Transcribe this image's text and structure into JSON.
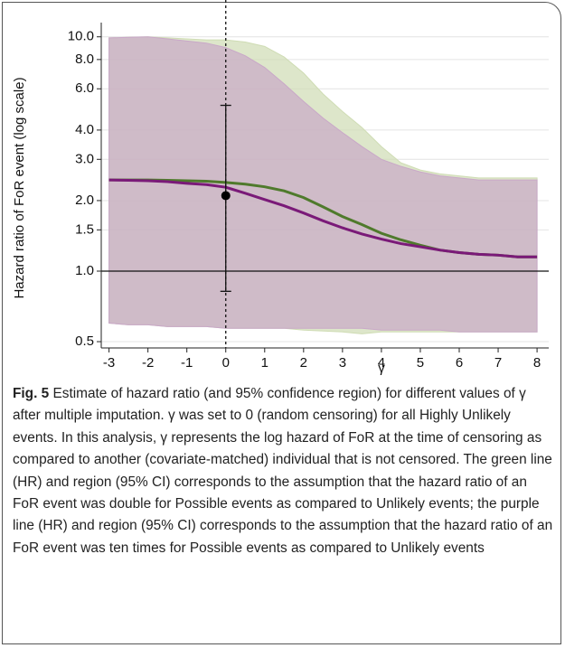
{
  "chart_data": {
    "type": "line",
    "log_y": true,
    "x_label": "γ",
    "y_label": "Hazard ratio of FoR event (log scale)",
    "x": [
      -3,
      -2.5,
      -2,
      -1.5,
      -1,
      -0.5,
      0,
      0.5,
      1,
      1.5,
      2,
      2.5,
      3,
      3.5,
      4,
      4.5,
      5,
      5.5,
      6,
      6.5,
      7,
      7.5,
      8
    ],
    "series": [
      {
        "color": "#4f7a2c",
        "band_color": "#cfdcb4",
        "values": [
          2.45,
          2.45,
          2.45,
          2.44,
          2.43,
          2.42,
          2.39,
          2.35,
          2.29,
          2.2,
          2.06,
          1.88,
          1.71,
          1.58,
          1.45,
          1.36,
          1.29,
          1.23,
          1.2,
          1.18,
          1.17,
          1.15,
          1.15
        ],
        "upper": [
          9.9,
          9.95,
          10,
          9.9,
          9.8,
          9.7,
          9.7,
          9.5,
          9.1,
          8.2,
          7.0,
          5.7,
          4.8,
          4.1,
          3.4,
          2.9,
          2.7,
          2.6,
          2.55,
          2.5,
          2.5,
          2.5,
          2.5
        ],
        "lower": [
          0.6,
          0.59,
          0.59,
          0.58,
          0.58,
          0.58,
          0.57,
          0.57,
          0.57,
          0.57,
          0.56,
          0.555,
          0.55,
          0.54,
          0.55,
          0.55,
          0.55,
          0.55,
          0.55,
          0.55,
          0.55,
          0.55,
          0.55
        ]
      },
      {
        "color": "#7a1a78",
        "band_color": "#c9a8c8",
        "values": [
          2.45,
          2.44,
          2.43,
          2.41,
          2.37,
          2.34,
          2.28,
          2.15,
          2.02,
          1.9,
          1.77,
          1.64,
          1.53,
          1.44,
          1.37,
          1.31,
          1.27,
          1.23,
          1.2,
          1.18,
          1.17,
          1.15,
          1.15
        ],
        "upper": [
          9.9,
          9.95,
          10,
          9.8,
          9.6,
          9.4,
          9.0,
          8.3,
          7.4,
          6.3,
          5.3,
          4.5,
          3.9,
          3.4,
          3.0,
          2.8,
          2.65,
          2.55,
          2.5,
          2.45,
          2.45,
          2.45,
          2.45
        ],
        "lower": [
          0.6,
          0.59,
          0.59,
          0.58,
          0.58,
          0.58,
          0.57,
          0.57,
          0.57,
          0.57,
          0.57,
          0.57,
          0.57,
          0.57,
          0.56,
          0.56,
          0.56,
          0.56,
          0.55,
          0.55,
          0.55,
          0.55,
          0.55
        ]
      }
    ],
    "point": {
      "x": 0,
      "value": 2.1,
      "lower": 0.82,
      "upper": 5.1
    },
    "hline": 1,
    "vline": 0,
    "xlim": [
      -3.2,
      8.3
    ],
    "ylim": [
      0.47,
      11
    ],
    "xticks": [
      -3,
      -2,
      -1,
      0,
      1,
      2,
      3,
      4,
      5,
      6,
      7,
      8
    ],
    "yticks": [
      0.5,
      {
        "value": 1,
        "label": "1.0"
      },
      1.5,
      {
        "value": 2,
        "label": "2.0"
      },
      {
        "value": 3,
        "label": "3.0"
      },
      {
        "value": 4,
        "label": "4.0"
      },
      {
        "value": 6,
        "label": "6.0"
      },
      {
        "value": 8,
        "label": "8.0"
      },
      {
        "value": 10,
        "label": "10.0"
      }
    ],
    "grid": true
  },
  "caption": {
    "label": "Fig. 5",
    "text": "Estimate of hazard ratio (and 95% confidence region) for different values of γ after multiple imputation. γ was set to 0 (random censoring) for all Highly Unlikely events. In this analysis, γ represents the log hazard of FoR at the time of censoring as compared to another (covariate-matched) individual that is not censored. The green line (HR) and region (95% CI) corresponds to the assumption that the hazard ratio of an FoR event was double for Possible events as compared to Unlikely events; the purple line (HR) and region (95% CI) corresponds to the assumption that the hazard ratio of an FoR event was ten times for Possible events as compared to Unlikely events"
  }
}
